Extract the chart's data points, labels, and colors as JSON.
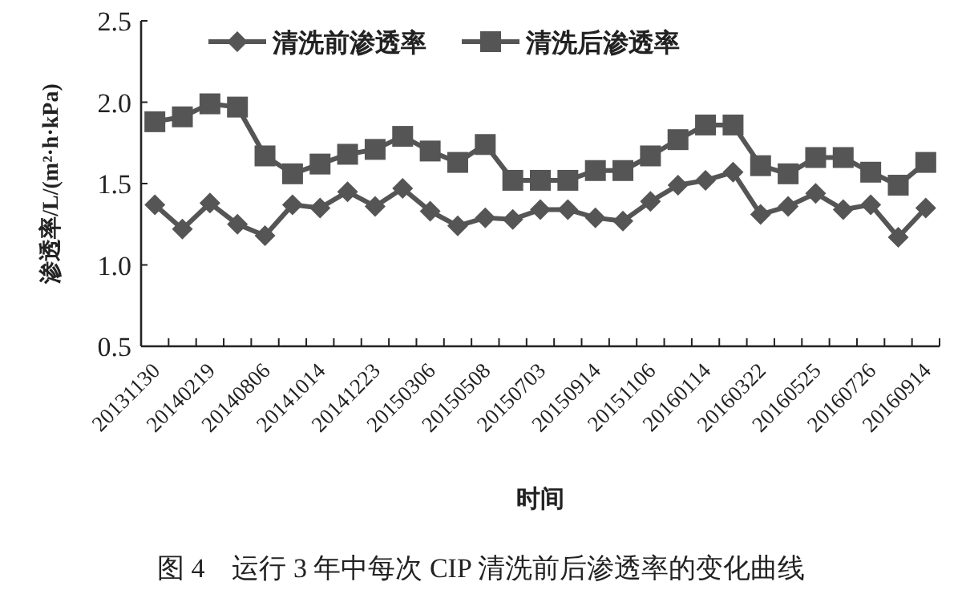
{
  "chart_data": {
    "type": "line",
    "xlabel": "时间",
    "ylabel": "渗透率/L/(m²·h·kPa)",
    "annotations": [
      "图 4　运行 3 年中每次 CIP 清洗前后渗透率的变化曲线"
    ],
    "categories": [
      "20131130",
      null,
      "20140219",
      null,
      "20140806",
      null,
      "20141014",
      null,
      "20141223",
      null,
      "20150306",
      null,
      "20150508",
      null,
      "20150703",
      null,
      "20150914",
      null,
      "20151106",
      null,
      "20160114",
      null,
      "20160322",
      null,
      "20160525",
      null,
      "20160726",
      null,
      "20160914"
    ],
    "series": [
      {
        "name": "清洗前渗透率",
        "color": "#555555",
        "marker": "diamond",
        "values": [
          1.37,
          1.22,
          1.38,
          1.25,
          1.18,
          1.37,
          1.35,
          1.45,
          1.36,
          1.47,
          1.33,
          1.24,
          1.29,
          1.28,
          1.34,
          1.34,
          1.29,
          1.27,
          1.39,
          1.49,
          1.52,
          1.57,
          1.31,
          1.36,
          1.44,
          1.34,
          1.37,
          1.17,
          1.35
        ]
      },
      {
        "name": "清洗后渗透率",
        "color": "#555555",
        "marker": "square",
        "values": [
          1.88,
          1.91,
          1.99,
          1.97,
          1.67,
          1.56,
          1.62,
          1.68,
          1.71,
          1.79,
          1.7,
          1.63,
          1.74,
          1.52,
          1.52,
          1.52,
          1.58,
          1.58,
          1.67,
          1.77,
          1.86,
          1.86,
          1.61,
          1.56,
          1.66,
          1.66,
          1.57,
          1.49,
          1.63
        ]
      }
    ],
    "ylim": [
      0.5,
      2.5
    ],
    "yticks": [
      {
        "value": 0.5,
        "label": "0.5"
      },
      {
        "value": 1.0,
        "label": "1.0"
      },
      {
        "value": 1.5,
        "label": "1.5"
      },
      {
        "value": 2.0,
        "label": "2.0"
      },
      {
        "value": 2.5,
        "label": "2.5"
      }
    ],
    "grid": false,
    "legend": "top",
    "line_style": "solid"
  }
}
